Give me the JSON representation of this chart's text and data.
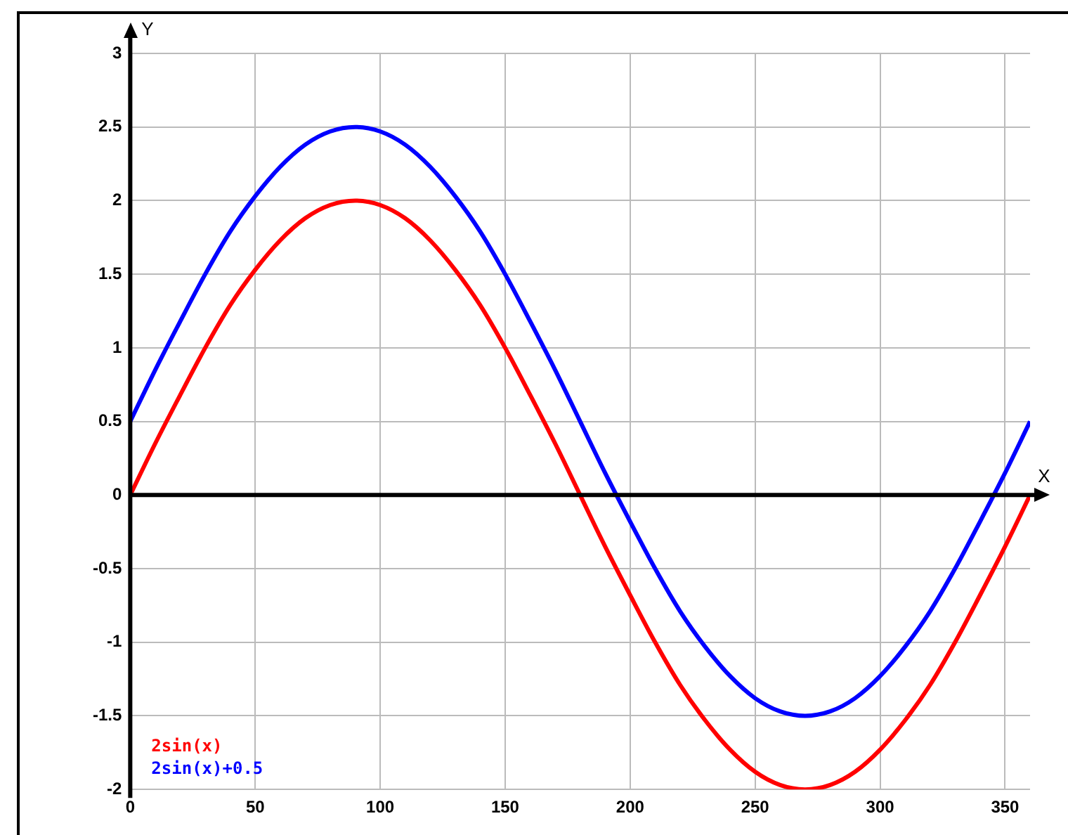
{
  "chart_data": {
    "type": "line",
    "xlabel": "X",
    "ylabel": "Y",
    "x": [
      0,
      10,
      20,
      30,
      40,
      50,
      60,
      70,
      80,
      90,
      100,
      110,
      120,
      130,
      140,
      150,
      160,
      170,
      180,
      190,
      200,
      210,
      220,
      230,
      240,
      250,
      260,
      270,
      280,
      290,
      300,
      310,
      320,
      330,
      340,
      350,
      360
    ],
    "series": [
      {
        "name": "2sin(x)",
        "color": "#ff0000",
        "values": [
          0,
          0.35,
          0.68,
          1,
          1.29,
          1.53,
          1.73,
          1.88,
          1.97,
          2,
          1.97,
          1.88,
          1.73,
          1.53,
          1.29,
          1,
          0.68,
          0.35,
          0,
          -0.35,
          -0.68,
          -1,
          -1.29,
          -1.53,
          -1.73,
          -1.88,
          -1.97,
          -2,
          -1.97,
          -1.88,
          -1.73,
          -1.53,
          -1.29,
          -1,
          -0.68,
          -0.35,
          0
        ]
      },
      {
        "name": "2sin(x)+0.5",
        "color": "#0000ff",
        "values": [
          0.5,
          0.85,
          1.18,
          1.5,
          1.79,
          2.03,
          2.23,
          2.38,
          2.47,
          2.5,
          2.47,
          2.38,
          2.23,
          2.03,
          1.79,
          1.5,
          1.18,
          0.85,
          0.5,
          0.15,
          -0.18,
          -0.5,
          -0.79,
          -1.03,
          -1.23,
          -1.38,
          -1.47,
          -1.5,
          -1.47,
          -1.38,
          -1.23,
          -1.03,
          -0.79,
          -0.5,
          -0.18,
          0.15,
          0.5
        ]
      }
    ],
    "xlim": [
      0,
      360
    ],
    "xticks": [
      0,
      50,
      100,
      150,
      200,
      250,
      300,
      350
    ],
    "ylim": [
      -2,
      3
    ],
    "yticks": [
      -2,
      -1.5,
      -1,
      -0.5,
      0,
      0.5,
      1,
      1.5,
      2,
      2.5,
      3
    ],
    "grid": true,
    "legend": "bottom left",
    "marker": "none",
    "line_style": "solid"
  }
}
